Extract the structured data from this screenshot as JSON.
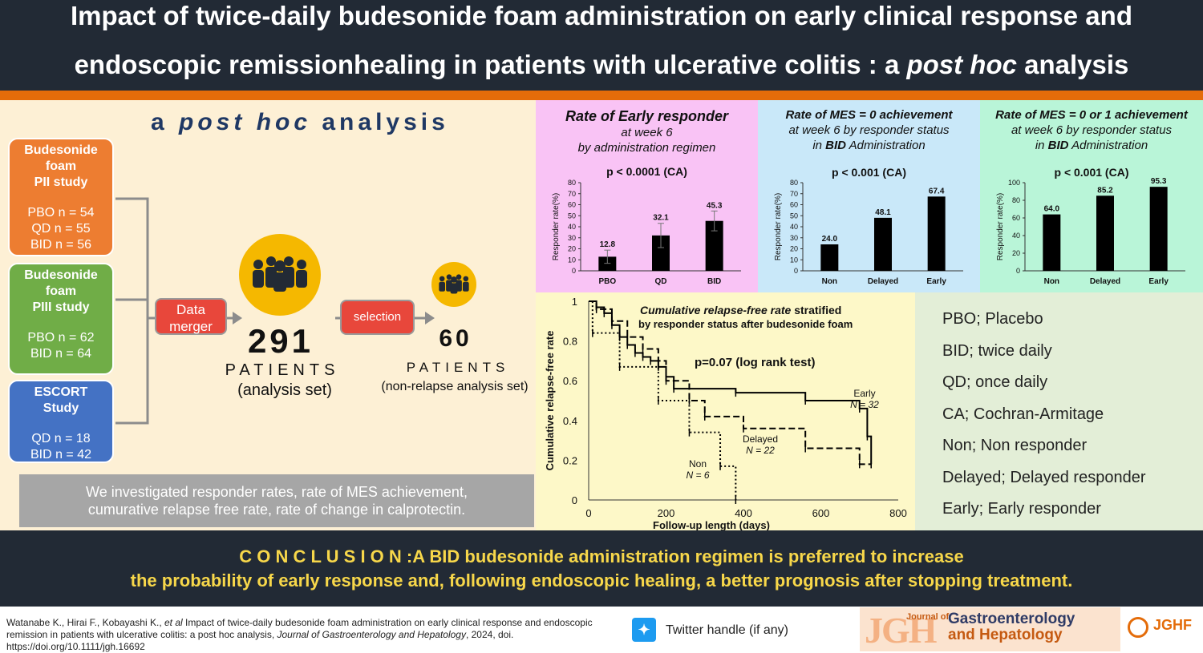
{
  "header": {
    "title_line1": "Impact of twice-daily budesonide foam administration on early clinical response and",
    "title_line2_pre": "endoscopic remissionhealing in patients with ulcerative colitis : a ",
    "title_line2_italic": "post hoc",
    "title_line2_post": " analysis"
  },
  "left": {
    "heading_italic": "post hoc",
    "heading_a": "a",
    "heading_rest": "analysis",
    "studies": [
      {
        "title_lines": [
          "Budesonide",
          "foam",
          "PII study"
        ],
        "rows": [
          "PBO n = 54",
          "QD n = 55",
          "BID n = 56"
        ],
        "color": "#ed7d31"
      },
      {
        "title_lines": [
          "Budesonide",
          "foam",
          "PIII study"
        ],
        "rows": [
          "PBO n = 62",
          "BID n = 64"
        ],
        "color": "#70ad47"
      },
      {
        "title_lines": [
          "ESCORT",
          "Study"
        ],
        "rows": [
          "QD n = 18",
          "BID n = 42"
        ],
        "color": "#4472c4"
      }
    ],
    "merge_label_1": "Data",
    "merge_label_2": "merger",
    "selection_label": "selection",
    "total_n": "291",
    "total_word": "PATIENTS",
    "total_sub": "(analysis set)",
    "subset_n": "60",
    "subset_word": "PATIENTS",
    "subset_sub": "(non-relapse analysis set)",
    "summary_line1": "We investigated responder rates, rate of MES achievement,",
    "summary_line2": "cumurative relapse free rate, rate of change in calprotectin."
  },
  "chart_data": [
    {
      "type": "bar",
      "title": "Rate of Early responder",
      "subtitle_lines": [
        "at week 6",
        "by administration regimen"
      ],
      "p_value": "p < 0.0001 (CA)",
      "ylabel": "Responder rate(%)",
      "categories": [
        "PBO",
        "QD",
        "BID"
      ],
      "values": [
        12.8,
        32.1,
        45.3
      ],
      "errors": [
        6,
        11,
        9
      ],
      "ylim": [
        0,
        80
      ],
      "yticks": [
        0,
        10,
        20,
        30,
        40,
        50,
        60,
        70,
        80
      ],
      "bg": "#f9c3f5"
    },
    {
      "type": "bar",
      "title": "Rate of MES = 0 achievement",
      "subtitle_lines": [
        "at week 6 by responder status",
        "in BID Administration"
      ],
      "subtitle_bold_word": "BID",
      "p_value": "p < 0.001 (CA)",
      "ylabel": "Responder rate(%)",
      "categories": [
        "Non",
        "Delayed",
        "Early"
      ],
      "values": [
        24.0,
        48.1,
        67.4
      ],
      "value_labels": [
        "24.0",
        "48.1",
        "67.4"
      ],
      "ylim": [
        0,
        80
      ],
      "yticks": [
        0,
        10,
        20,
        30,
        40,
        50,
        60,
        70,
        80
      ],
      "bg": "#c9e8f9"
    },
    {
      "type": "bar",
      "title": "Rate of MES = 0 or 1 achievement",
      "subtitle_lines": [
        "at week 6 by responder status",
        "in BID Administration"
      ],
      "subtitle_bold_word": "BID",
      "p_value": "p < 0.001 (CA)",
      "ylabel": "Responder rate(%)",
      "categories": [
        "Non",
        "Delayed",
        "Early"
      ],
      "values": [
        64.0,
        85.2,
        95.3
      ],
      "value_labels": [
        "64.0",
        "85.2",
        "95.3"
      ],
      "ylim": [
        0,
        100
      ],
      "yticks": [
        0,
        20,
        40,
        60,
        80,
        100
      ],
      "bg": "#b9f5d8"
    },
    {
      "type": "line",
      "title_bold": "Cumulative relapse-free rate",
      "title_rest": "stratified",
      "title_line2": "by responder status after budesonide foam",
      "annotation": "p=0.07 (log rank test)",
      "xlabel": "Follow-up length (days)",
      "ylabel": "Cumulative relapse-free rate",
      "xlim": [
        0,
        800
      ],
      "ylim": [
        0,
        1
      ],
      "xticks": [
        0,
        200,
        400,
        600,
        800
      ],
      "yticks": [
        "0",
        "0.2",
        "0.4",
        "0.6",
        "0.8",
        "1"
      ],
      "series": [
        {
          "name": "Early",
          "n_label": "N = 32",
          "style": "solid",
          "x": [
            0,
            20,
            40,
            60,
            80,
            100,
            120,
            140,
            160,
            180,
            200,
            220,
            380,
            560,
            700,
            720,
            730
          ],
          "y": [
            1.0,
            0.97,
            0.94,
            0.88,
            0.82,
            0.78,
            0.74,
            0.72,
            0.7,
            0.67,
            0.62,
            0.56,
            0.54,
            0.5,
            0.46,
            0.32,
            0.18
          ]
        },
        {
          "name": "Delayed",
          "n_label": "N = 22",
          "style": "dashed",
          "x": [
            0,
            20,
            60,
            100,
            140,
            180,
            200,
            260,
            300,
            400,
            560,
            700,
            730
          ],
          "y": [
            1.0,
            0.96,
            0.9,
            0.82,
            0.76,
            0.7,
            0.6,
            0.5,
            0.42,
            0.36,
            0.26,
            0.18,
            0.18
          ]
        },
        {
          "name": "Non",
          "n_label": "N = 6",
          "style": "dotted",
          "x": [
            0,
            10,
            80,
            180,
            260,
            340,
            380
          ],
          "y": [
            1.0,
            0.84,
            0.67,
            0.5,
            0.34,
            0.17,
            0.0
          ]
        }
      ]
    }
  ],
  "legend": [
    "PBO; Placebo",
    "BID; twice daily",
    "QD; once daily",
    "CA; Cochran-Armitage",
    "Non; Non responder",
    "Delayed; Delayed responder",
    "Early; Early responder"
  ],
  "conclusion": {
    "line1": "C O N C L U S I O N :A BID budesonide administration regimen is preferred to increase",
    "line2": "the probability of early response and, following endoscopic healing, a better prognosis after stopping treatment."
  },
  "footer": {
    "citation_pre": "Watanabe K., Hirai F., Kobayashi K., ",
    "citation_etal": "et al",
    "citation_mid": " Impact of twice-daily budesonide foam administration on early clinical response and endoscopic remission in patients with ulcerative colitis: a post hoc analysis, ",
    "citation_journal": "Journal of Gastroenterology and Hepatology",
    "citation_post": ", 2024, doi. https://doi.org/10.1111/jgh.16692",
    "twitter_label": "Twitter handle (if any)",
    "journal_mark": "JGH",
    "journal_name_1": "Journal of",
    "journal_name_2": "Gastroenterology",
    "journal_name_3": "and Hepatology",
    "jghf_mark": "JGHF"
  }
}
